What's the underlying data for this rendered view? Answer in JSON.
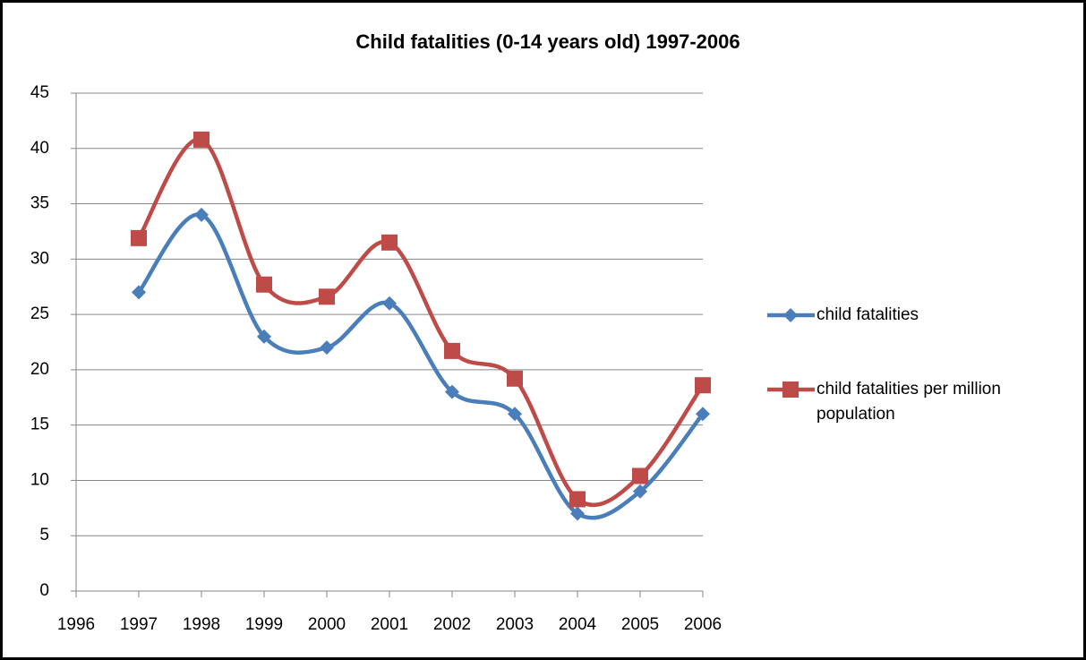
{
  "chart_data": {
    "type": "line",
    "title": "Child fatalities (0-14 years old) 1997-2006",
    "x": [
      1997,
      1998,
      1999,
      2000,
      2001,
      2002,
      2003,
      2004,
      2005,
      2006
    ],
    "series": [
      {
        "name": "child fatalities",
        "color": "#4a7ebb",
        "marker": "diamond",
        "values": [
          27,
          34,
          23,
          22,
          26,
          18,
          16,
          7,
          9,
          16
        ]
      },
      {
        "name": "child fatalities per million population",
        "color": "#be4b48",
        "marker": "square",
        "values": [
          31.9,
          40.8,
          27.7,
          26.6,
          31.5,
          21.7,
          19.2,
          8.3,
          10.4,
          18.6
        ]
      }
    ],
    "xlim": [
      1996,
      2006
    ],
    "xticks": [
      1996,
      1997,
      1998,
      1999,
      2000,
      2001,
      2002,
      2003,
      2004,
      2005,
      2006
    ],
    "ylim": [
      0,
      45
    ],
    "yticks": [
      0,
      5,
      10,
      15,
      20,
      25,
      30,
      35,
      40,
      45
    ],
    "grid": true,
    "smooth": true,
    "legend": "right"
  }
}
